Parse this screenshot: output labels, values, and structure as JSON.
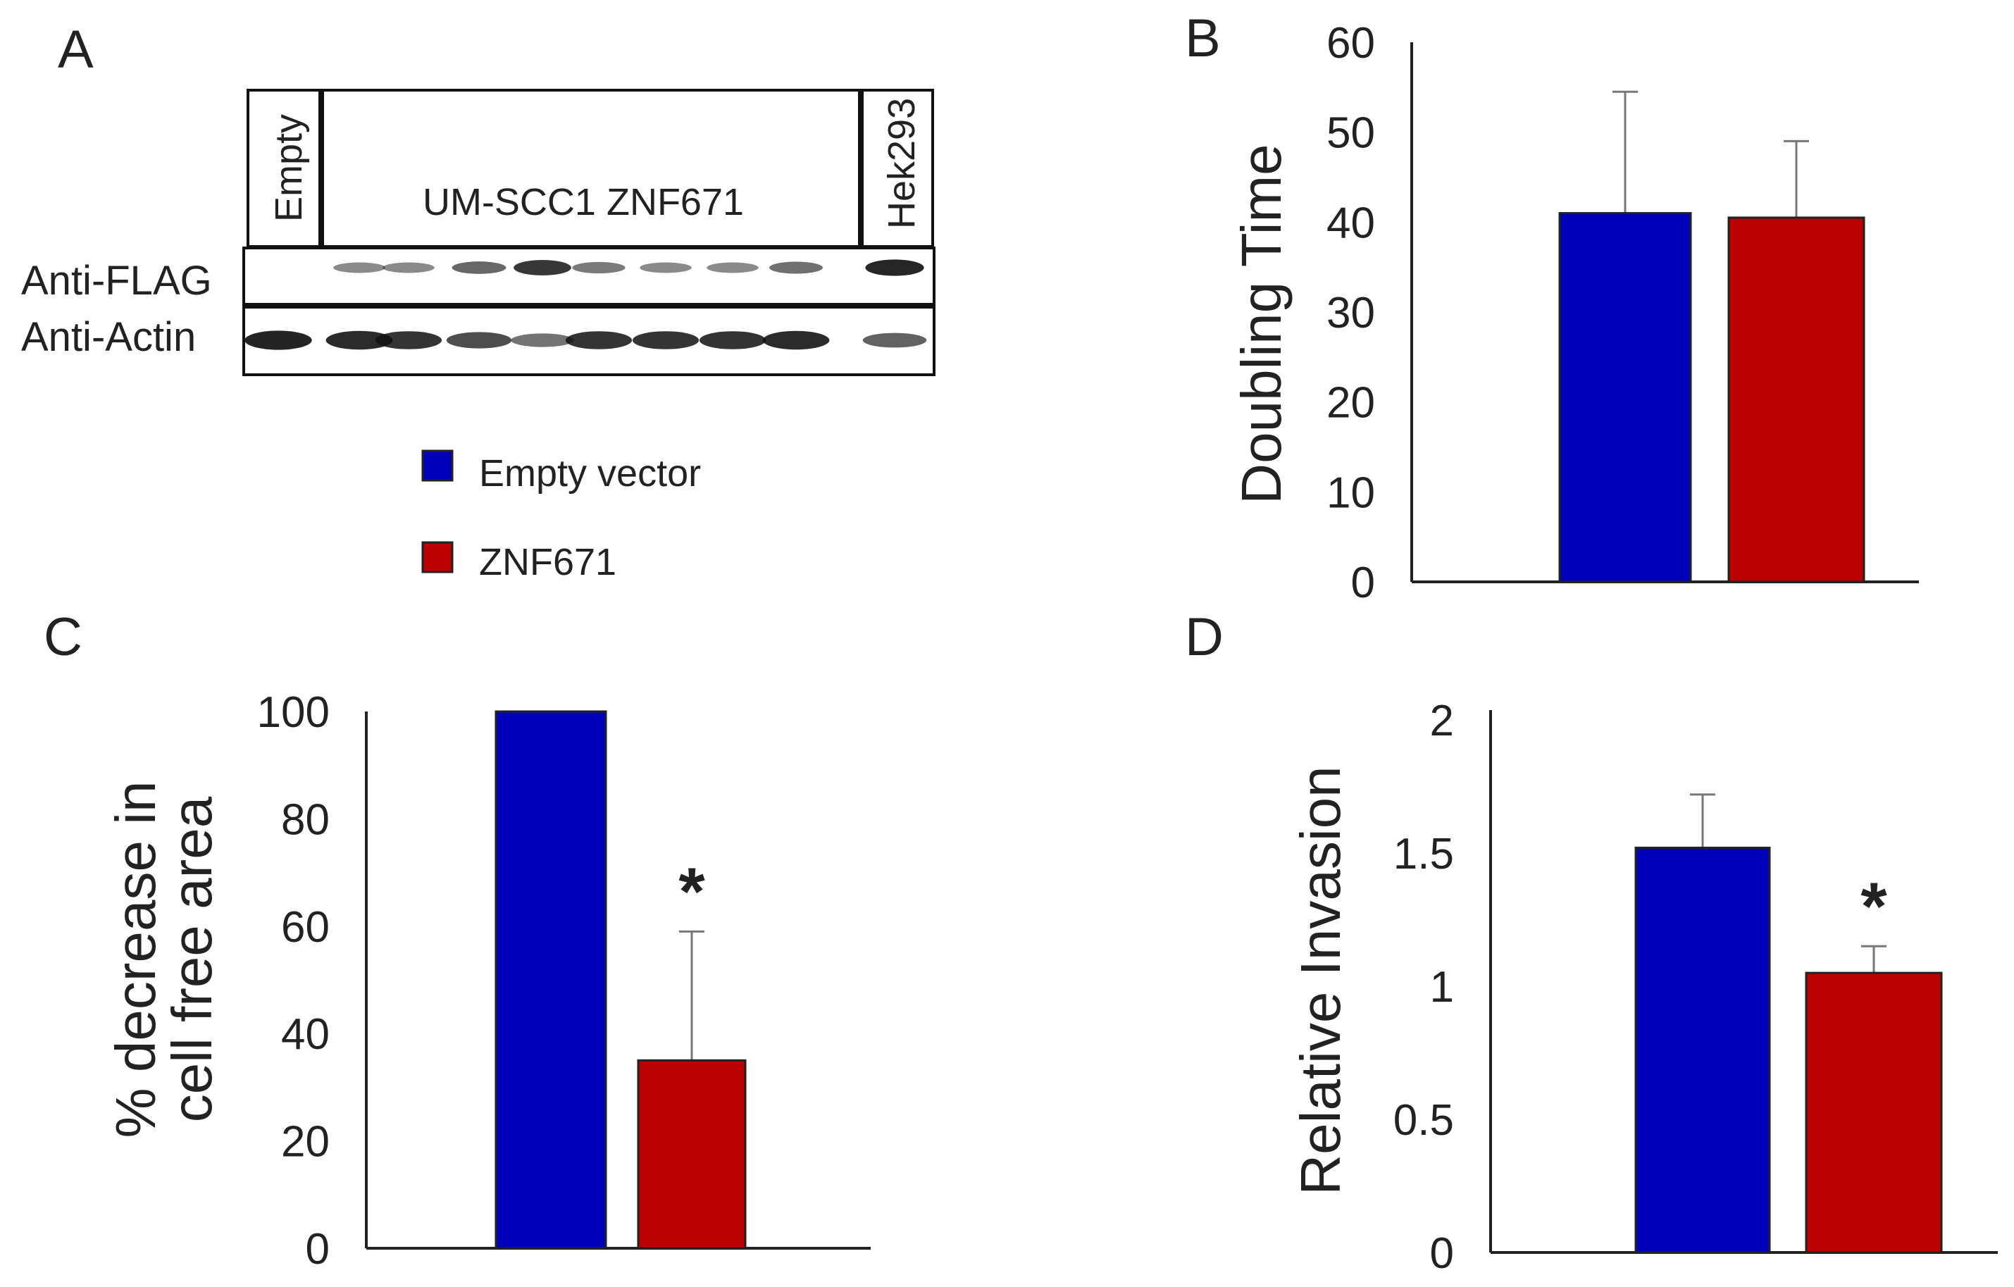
{
  "colors": {
    "empty_vector": "#0000BB",
    "znf671": "#BB0000",
    "axis": "#222222",
    "error_bar": "#777777"
  },
  "legend": [
    {
      "label": "Empty vector",
      "color": "#0000BB"
    },
    {
      "label": "ZNF671",
      "color": "#BB0000"
    }
  ],
  "panel_a": {
    "letter": "A",
    "lane_labels": {
      "empty": "Empty",
      "middle": "UM-SCC1  ZNF671",
      "hek": "Hek293"
    },
    "row_labels": {
      "flag": "Anti-FLAG",
      "actin": "Anti-Actin"
    },
    "flag_band_intensity": [
      0.0,
      0.35,
      0.35,
      0.55,
      0.85,
      0.45,
      0.35,
      0.35,
      0.5,
      0.95
    ],
    "actin_band_intensity": [
      0.95,
      0.9,
      0.85,
      0.7,
      0.45,
      0.85,
      0.85,
      0.85,
      0.9,
      0.55
    ]
  },
  "chart_data": [
    {
      "type": "bar",
      "panel": "B",
      "categories": [
        "Empty vector",
        "ZNF671"
      ],
      "values": [
        41,
        40.5
      ],
      "errors": [
        13.5,
        8.5
      ],
      "ylabel": "Doubling Time",
      "ylim": [
        0,
        60
      ],
      "yticks": [
        0,
        10,
        20,
        30,
        40,
        50,
        60
      ],
      "tick_labels": [
        "0",
        "10",
        "20",
        "30",
        "40",
        "50",
        "60"
      ],
      "significance": [
        "",
        ""
      ]
    },
    {
      "type": "bar",
      "panel": "C",
      "categories": [
        "Empty vector",
        "ZNF671"
      ],
      "values": [
        100,
        35
      ],
      "errors": [
        0,
        24
      ],
      "ylabel": "% decrease in cell free area",
      "ylabel_lines": [
        "% decrease in",
        "cell free area"
      ],
      "ylim": [
        0,
        100
      ],
      "yticks": [
        0,
        20,
        40,
        60,
        80,
        100
      ],
      "tick_labels": [
        "0",
        "20",
        "40",
        "60",
        "80",
        "100"
      ],
      "significance": [
        "",
        "*"
      ]
    },
    {
      "type": "bar",
      "panel": "D",
      "categories": [
        "Empty vector",
        "ZNF671"
      ],
      "values": [
        1.52,
        1.05
      ],
      "errors": [
        0.2,
        0.1
      ],
      "ylabel": "Relative Invasion",
      "ylim": [
        0,
        2
      ],
      "yticks": [
        0,
        0.5,
        1,
        1.5,
        2
      ],
      "tick_labels": [
        "0",
        "0.5",
        "1",
        "1.5",
        "2"
      ],
      "significance": [
        "",
        "*"
      ]
    }
  ]
}
